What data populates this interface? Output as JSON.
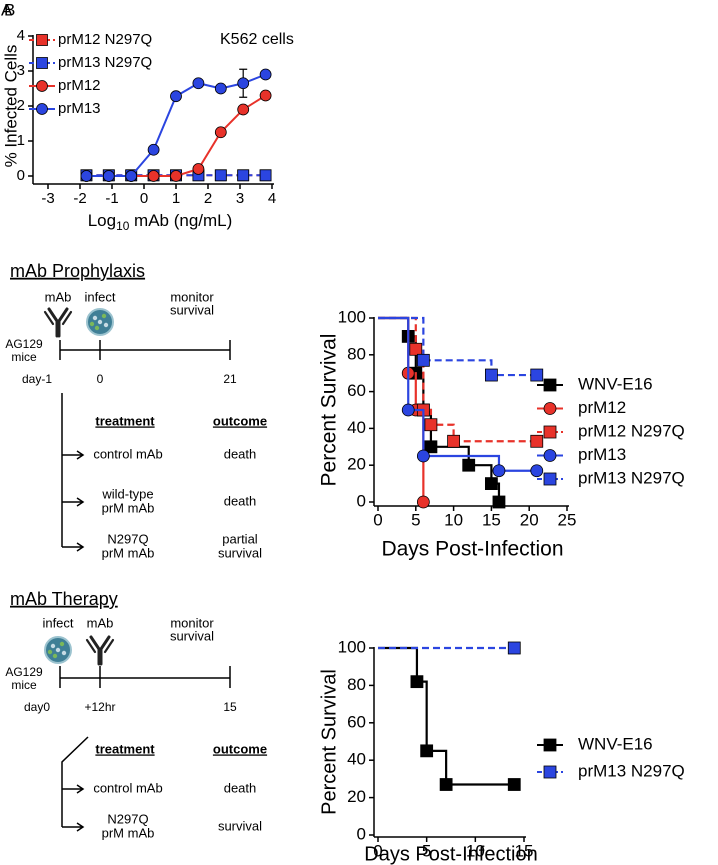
{
  "panel_labels": [
    "A",
    "B"
  ],
  "chart_data": [
    {
      "type": "line",
      "ylabel": "% Infected Cells",
      "xlabel": {
        "base": "Log",
        "sub": "10",
        "rest": " mAb (ng/mL)"
      },
      "annotation": "K562 cells",
      "x": [
        -1.8,
        -1.1,
        -0.4,
        0.3,
        1.0,
        1.7,
        2.4,
        3.1,
        3.8
      ],
      "xlim": [
        -3,
        4
      ],
      "xticks": [
        -3,
        -2,
        -1,
        0,
        1,
        2,
        3,
        4
      ],
      "ylim": [
        0,
        4
      ],
      "yticks": [
        0,
        1,
        2,
        3,
        4
      ],
      "series": [
        {
          "name": "prM12 N297Q",
          "color": "#e8322a",
          "marker": "square",
          "dash": true,
          "values": [
            0.02,
            0.02,
            0.02,
            0.02,
            0.02,
            0.02,
            0.02,
            0.02,
            0.02
          ]
        },
        {
          "name": "prM13 N297Q",
          "color": "#2b45e0",
          "marker": "square",
          "dash": true,
          "values": [
            0.02,
            0.02,
            0.02,
            0.02,
            0.02,
            0.02,
            0.02,
            0.02,
            0.02
          ]
        },
        {
          "name": "prM12",
          "color": "#e8322a",
          "marker": "circle",
          "dash": false,
          "values": [
            0,
            0,
            0,
            0,
            0,
            0.2,
            1.25,
            1.9,
            2.3
          ],
          "errors": [
            0,
            0,
            0,
            0,
            0,
            0.05,
            0.08,
            0.05,
            0.1
          ]
        },
        {
          "name": "prM13",
          "color": "#2b45e0",
          "marker": "circle",
          "dash": false,
          "values": [
            0,
            0,
            0,
            0.75,
            2.28,
            2.65,
            2.5,
            2.65,
            2.9
          ],
          "errors": [
            0,
            0,
            0,
            0.03,
            0.05,
            0.1,
            0.08,
            0.4,
            0.05
          ]
        }
      ]
    },
    {
      "type": "step",
      "ylabel": "Percent Survival",
      "xlabel": "Days Post-Infection",
      "xlim": [
        0,
        25
      ],
      "xticks": [
        0,
        5,
        10,
        15,
        20,
        25
      ],
      "ylim": [
        0,
        100
      ],
      "yticks": [
        0,
        20,
        40,
        60,
        80,
        100
      ],
      "series": [
        {
          "name": "WNV-E16",
          "color": "#000000",
          "marker": "square",
          "dash": false,
          "x": [
            0,
            4,
            5,
            6,
            7,
            12,
            15,
            16
          ],
          "values": [
            100,
            90,
            70,
            50,
            30,
            20,
            10,
            0
          ]
        },
        {
          "name": "prM12",
          "color": "#e8322a",
          "marker": "circle",
          "dash": false,
          "x": [
            0,
            4,
            5,
            6
          ],
          "values": [
            100,
            70,
            50,
            0
          ]
        },
        {
          "name": "prM12 N297Q",
          "color": "#e8322a",
          "marker": "square",
          "dash": true,
          "x": [
            0,
            5,
            6,
            7,
            10,
            21
          ],
          "values": [
            100,
            83,
            50,
            42,
            33,
            33
          ]
        },
        {
          "name": "prM13",
          "color": "#2b45e0",
          "marker": "circle",
          "dash": false,
          "x": [
            0,
            4,
            6,
            16,
            21
          ],
          "values": [
            100,
            50,
            25,
            17,
            17
          ]
        },
        {
          "name": "prM13 N297Q",
          "color": "#2b45e0",
          "marker": "square",
          "dash": true,
          "x": [
            0,
            6,
            15,
            21
          ],
          "values": [
            100,
            77,
            69,
            69
          ]
        }
      ]
    },
    {
      "type": "step",
      "ylabel": "Percent Survival",
      "xlabel": "Days Post-Infection",
      "xlim": [
        0,
        15
      ],
      "xticks": [
        0,
        5,
        10,
        15
      ],
      "ylim": [
        0,
        100
      ],
      "yticks": [
        0,
        20,
        40,
        60,
        80,
        100
      ],
      "series": [
        {
          "name": "WNV-E16",
          "color": "#000000",
          "marker": "square",
          "dash": false,
          "x": [
            0,
            4,
            5,
            7,
            14
          ],
          "values": [
            100,
            82,
            45,
            27,
            27
          ]
        },
        {
          "name": "prM13 N297Q",
          "color": "#2b45e0",
          "marker": "square",
          "dash": true,
          "x": [
            0,
            14
          ],
          "values": [
            100,
            100
          ]
        }
      ]
    }
  ],
  "diagrams": [
    {
      "title": "mAb Prophylaxis",
      "events": [
        "mAb",
        "infect"
      ],
      "monitor": [
        "monitor",
        "survival"
      ],
      "subject": [
        "AG129",
        "mice"
      ],
      "timepoints": [
        "day-1",
        "0",
        "21"
      ],
      "header": [
        "treatment",
        "outcome"
      ],
      "rows": [
        [
          [
            "control mAb"
          ],
          [
            "death"
          ]
        ],
        [
          [
            "wild-type",
            "prM mAb"
          ],
          [
            "death"
          ]
        ],
        [
          [
            "N297Q",
            "prM mAb"
          ],
          [
            "partial",
            "survival"
          ]
        ]
      ]
    },
    {
      "title": "mAb Therapy",
      "events": [
        "infect",
        "mAb"
      ],
      "monitor": [
        "monitor",
        "survival"
      ],
      "subject": [
        "AG129",
        "mice"
      ],
      "timepoints": [
        "day0",
        "+12hr",
        "15"
      ],
      "header": [
        "treatment",
        "outcome"
      ],
      "rows": [
        [
          [
            "control mAb"
          ],
          [
            "death"
          ]
        ],
        [
          [
            "N297Q",
            "prM mAb"
          ],
          [
            "survival"
          ]
        ]
      ]
    }
  ]
}
